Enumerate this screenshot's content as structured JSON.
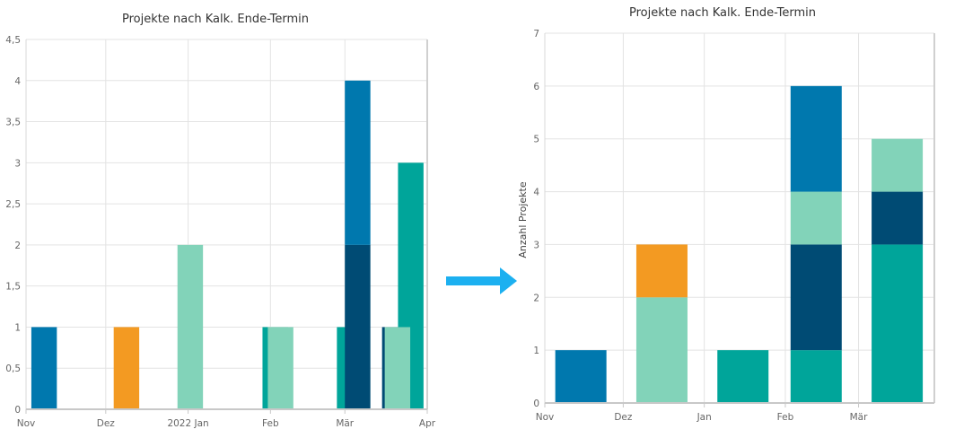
{
  "colors": {
    "blue": "#0078ae",
    "orange": "#f39a22",
    "mint": "#82d3b9",
    "teal": "#00a59a",
    "navy": "#004b74",
    "arrow": "#1cb0f0"
  },
  "arrow_icon": "arrow-right-icon",
  "chart_data": [
    {
      "type": "bar",
      "title": "Projekte nach Kalk. Ende-Termin",
      "ylabel": "",
      "ylim": [
        0,
        4.5
      ],
      "yticks": [
        "0",
        "0,5",
        "1",
        "1,5",
        "2",
        "2,5",
        "3",
        "3,5",
        "4",
        "4,5"
      ],
      "xlim": [
        "2021-11-01",
        "2022-04-01"
      ],
      "xticks": [
        {
          "date": "2021-11-01",
          "label": "Nov"
        },
        {
          "date": "2021-12-01",
          "label": "Dez"
        },
        {
          "date": "2022-01-01",
          "label": "2022 Jan"
        },
        {
          "date": "2022-02-01",
          "label": "Feb"
        },
        {
          "date": "2022-03-01",
          "label": "Mär"
        },
        {
          "date": "2022-04-01",
          "label": "Apr"
        }
      ],
      "grid": true,
      "bars": [
        {
          "date": "2021-11-03",
          "base": 0,
          "value": 1,
          "color": "blue"
        },
        {
          "date": "2021-12-04",
          "base": 0,
          "value": 1,
          "color": "orange"
        },
        {
          "date": "2021-12-28",
          "base": 0,
          "value": 2,
          "color": "mint"
        },
        {
          "date": "2022-01-29",
          "base": 0,
          "value": 1,
          "color": "teal"
        },
        {
          "date": "2022-01-31",
          "base": 0,
          "value": 1,
          "color": "mint"
        },
        {
          "date": "2022-02-26",
          "base": 0,
          "value": 1,
          "color": "teal"
        },
        {
          "date": "2022-03-01",
          "base": 0,
          "value": 2,
          "color": "navy"
        },
        {
          "date": "2022-03-01",
          "base": 2,
          "value": 2,
          "color": "blue"
        },
        {
          "date": "2022-03-21",
          "base": 0,
          "value": 3,
          "color": "teal"
        },
        {
          "date": "2022-03-15",
          "base": 0,
          "value": 1,
          "color": "navy"
        },
        {
          "date": "2022-03-16",
          "base": 0,
          "value": 1,
          "color": "mint"
        }
      ]
    },
    {
      "type": "bar",
      "stacked": true,
      "title": "Projekte nach Kalk. Ende-Termin",
      "ylabel": "Anzahl Projekte",
      "ylim": [
        0,
        7
      ],
      "yticks": [
        "0",
        "1",
        "2",
        "3",
        "4",
        "5",
        "6",
        "7"
      ],
      "xlim": [
        "2021-11-01",
        "2022-03-30"
      ],
      "xticks": [
        {
          "date": "2021-11-01",
          "label": "Nov"
        },
        {
          "date": "2021-12-01",
          "label": "Dez"
        },
        {
          "date": "2022-01-01",
          "label": "Jan"
        },
        {
          "date": "2022-02-01",
          "label": "Feb"
        },
        {
          "date": "2022-03-01",
          "label": "Mär"
        }
      ],
      "grid": true,
      "stacks": [
        {
          "date": "2021-11-05",
          "segments": [
            {
              "value": 1,
              "color": "blue"
            }
          ]
        },
        {
          "date": "2021-12-06",
          "segments": [
            {
              "value": 2,
              "color": "mint"
            },
            {
              "value": 1,
              "color": "orange"
            }
          ]
        },
        {
          "date": "2022-01-06",
          "segments": [
            {
              "value": 1,
              "color": "teal"
            }
          ]
        },
        {
          "date": "2022-02-03",
          "segments": [
            {
              "value": 1,
              "color": "teal"
            },
            {
              "value": 2,
              "color": "navy"
            },
            {
              "value": 1,
              "color": "mint"
            },
            {
              "value": 2,
              "color": "blue"
            }
          ]
        },
        {
          "date": "2022-03-06",
          "segments": [
            {
              "value": 3,
              "color": "teal"
            },
            {
              "value": 1,
              "color": "navy"
            },
            {
              "value": 1,
              "color": "mint"
            }
          ]
        }
      ]
    }
  ]
}
